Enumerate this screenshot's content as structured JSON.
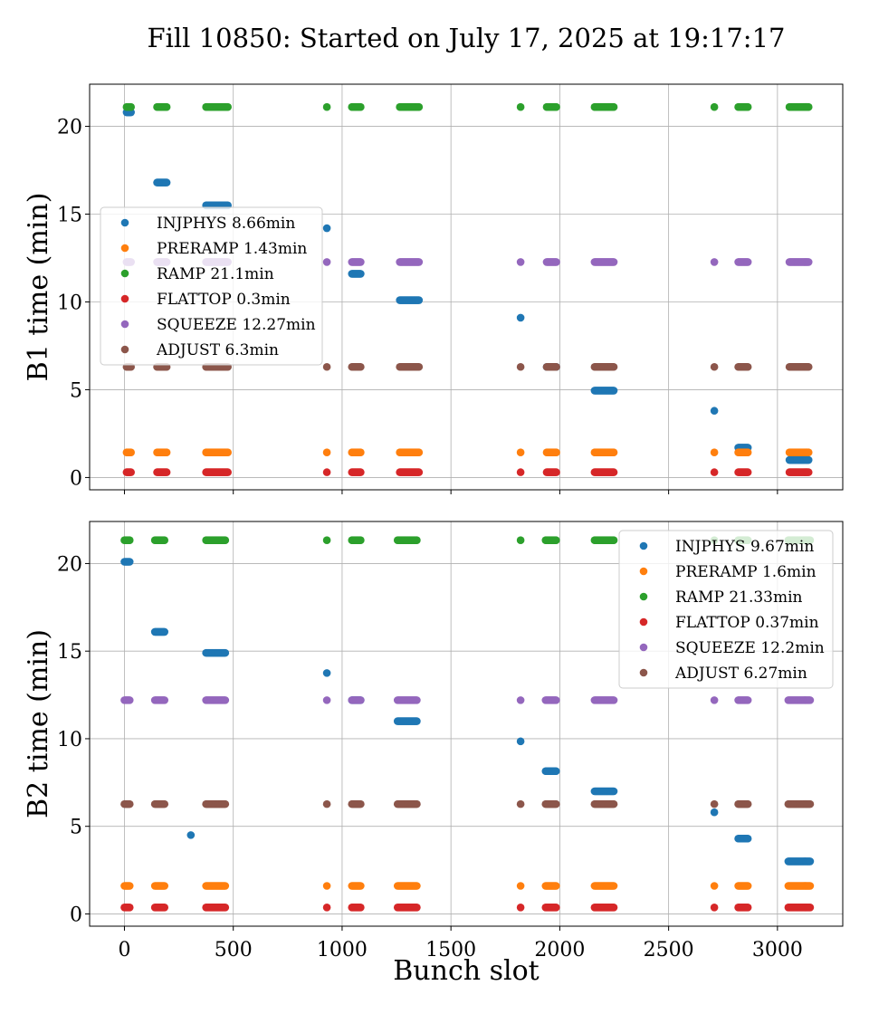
{
  "title": "Fill 10850: Started on July 17, 2025 at 19:17:17",
  "xlabel": "Bunch slot",
  "colors": {
    "INJPHYS": "#1f77b4",
    "PRERAMP": "#ff7f0e",
    "RAMP": "#2ca02c",
    "FLATTOP": "#d62728",
    "SQUEEZE": "#9467bd",
    "ADJUST": "#8c564b"
  },
  "chart_data": [
    {
      "type": "scatter",
      "ylabel": "B1 time (min)",
      "xlim": [
        -160,
        3300
      ],
      "ylim": [
        -0.7,
        22.4
      ],
      "xticks": [
        0,
        500,
        1000,
        1500,
        2000,
        2500,
        3000
      ],
      "yticks": [
        0,
        5,
        10,
        15,
        20
      ],
      "grid": true,
      "legend_position": "center-left",
      "groups": [
        {
          "range": [
            10,
            30
          ]
        },
        {
          "range": [
            150,
            195
          ]
        },
        {
          "range": [
            375,
            475
          ]
        },
        {
          "range": [
            930,
            930
          ]
        },
        {
          "range": [
            1045,
            1085
          ]
        },
        {
          "range": [
            1265,
            1355
          ]
        },
        {
          "range": [
            1820,
            1820
          ]
        },
        {
          "range": [
            1940,
            1985
          ]
        },
        {
          "range": [
            2160,
            2250
          ]
        },
        {
          "range": [
            2710,
            2710
          ]
        },
        {
          "range": [
            2820,
            2865
          ]
        },
        {
          "range": [
            3055,
            3145
          ]
        }
      ],
      "series": [
        {
          "name": "INJPHYS",
          "legend": "INJPHYS 8.66min",
          "group_values": [
            20.8,
            16.8,
            15.5,
            14.2,
            11.6,
            10.1,
            9.1,
            6.3,
            4.95,
            3.8,
            1.7,
            1.0
          ]
        },
        {
          "name": "PRERAMP",
          "legend": "PRERAMP 1.43min",
          "value": 1.43
        },
        {
          "name": "RAMP",
          "legend": "RAMP 21.1min",
          "value": 21.1
        },
        {
          "name": "FLATTOP",
          "legend": "FLATTOP 0.3min",
          "value": 0.3
        },
        {
          "name": "SQUEEZE",
          "legend": "SQUEEZE 12.27min",
          "value": 12.27
        },
        {
          "name": "ADJUST",
          "legend": "ADJUST 6.3min",
          "value": 6.3
        }
      ]
    },
    {
      "type": "scatter",
      "ylabel": "B2 time (min)",
      "xlabel": "Bunch slot",
      "xlim": [
        -160,
        3300
      ],
      "ylim": [
        -0.7,
        22.4
      ],
      "xticks": [
        0,
        500,
        1000,
        1500,
        2000,
        2500,
        3000
      ],
      "yticks": [
        0,
        5,
        10,
        15,
        20
      ],
      "grid": true,
      "legend_position": "top-right",
      "groups": [
        {
          "range": [
            0,
            25
          ]
        },
        {
          "range": [
            140,
            185
          ]
        },
        {
          "range": [
            375,
            465
          ]
        },
        {
          "range": [
            930,
            930
          ]
        },
        {
          "range": [
            1045,
            1085
          ]
        },
        {
          "range": [
            1255,
            1345
          ]
        },
        {
          "range": [
            1820,
            1820
          ]
        },
        {
          "range": [
            1935,
            1985
          ]
        },
        {
          "range": [
            2160,
            2250
          ]
        },
        {
          "range": [
            2710,
            2710
          ]
        },
        {
          "range": [
            2820,
            2865
          ]
        },
        {
          "range": [
            3050,
            3150
          ]
        }
      ],
      "series": [
        {
          "name": "INJPHYS",
          "legend": "INJPHYS 9.67min",
          "group_values": [
            20.1,
            16.1,
            14.9,
            13.75,
            12.2,
            11.0,
            9.85,
            8.15,
            7.0,
            5.8,
            4.3,
            3.0
          ],
          "extra_points": [
            {
              "x": 305,
              "y": 4.5
            }
          ]
        },
        {
          "name": "PRERAMP",
          "legend": "PRERAMP 1.6min",
          "value": 1.6
        },
        {
          "name": "RAMP",
          "legend": "RAMP 21.33min",
          "value": 21.33
        },
        {
          "name": "FLATTOP",
          "legend": "FLATTOP 0.37min",
          "value": 0.37
        },
        {
          "name": "SQUEEZE",
          "legend": "SQUEEZE 12.2min",
          "value": 12.2
        },
        {
          "name": "ADJUST",
          "legend": "ADJUST 6.27min",
          "value": 6.27
        }
      ]
    }
  ]
}
